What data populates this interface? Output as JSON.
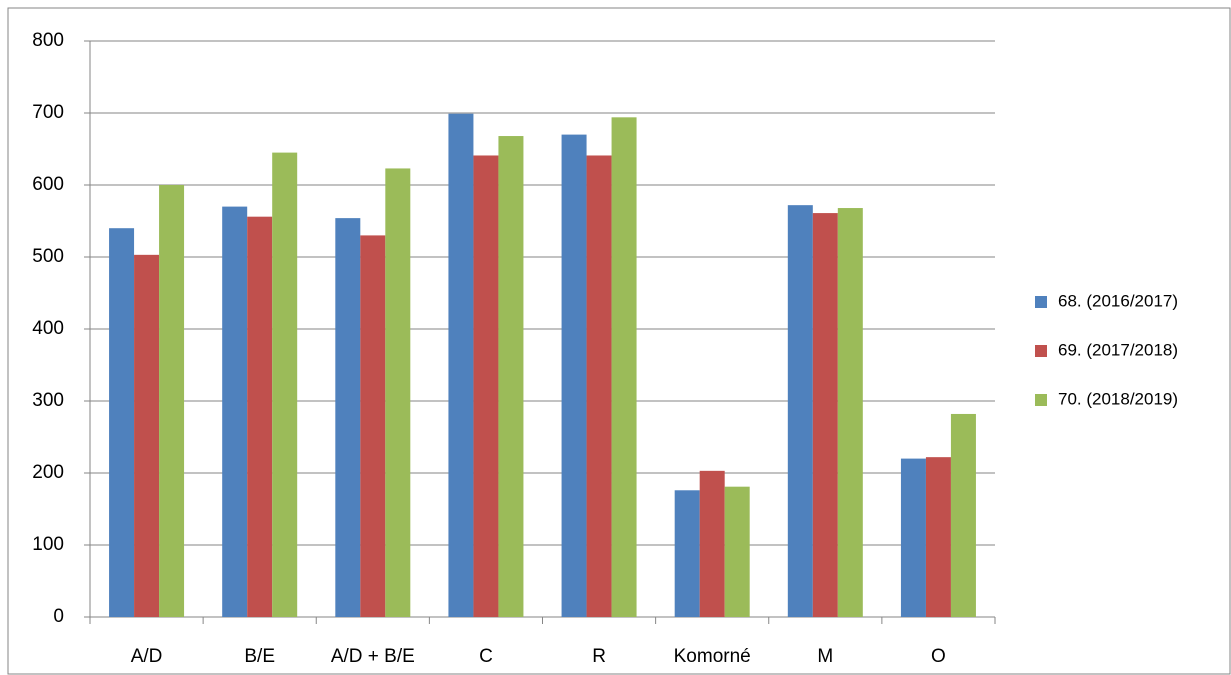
{
  "chart_data": {
    "type": "bar",
    "categories": [
      "A/D",
      "B/E",
      "A/D + B/E",
      "C",
      "R",
      "Komorné",
      "M",
      "O"
    ],
    "series": [
      {
        "name": "68. (2016/2017)",
        "color": "#4f81bd",
        "values": [
          540,
          570,
          554,
          699,
          670,
          176,
          572,
          220
        ]
      },
      {
        "name": "69. (2017/2018)",
        "color": "#c0504d",
        "values": [
          503,
          556,
          530,
          641,
          641,
          203,
          561,
          222
        ]
      },
      {
        "name": "70. (2018/2019)",
        "color": "#9bbb59",
        "values": [
          600,
          645,
          623,
          668,
          694,
          181,
          568,
          282
        ]
      }
    ],
    "ylim": [
      0,
      800
    ],
    "yticks": [
      0,
      100,
      200,
      300,
      400,
      500,
      600,
      700,
      800
    ],
    "grid": true,
    "legend": "right"
  }
}
